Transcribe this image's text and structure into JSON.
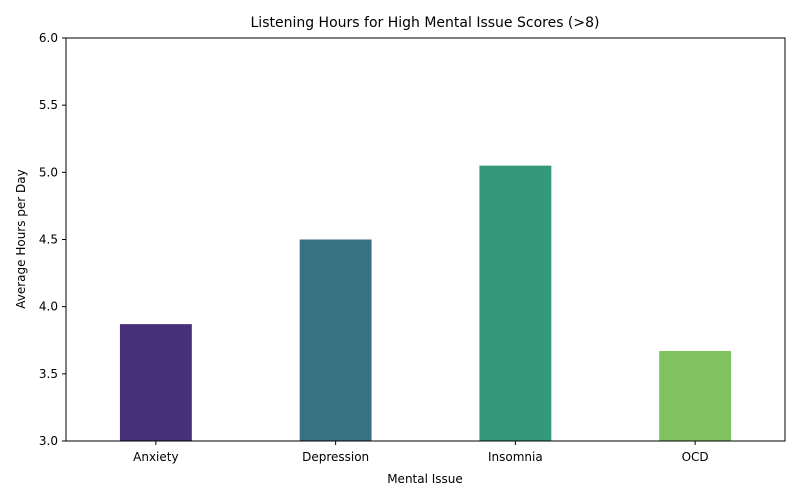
{
  "chart_data": {
    "type": "bar",
    "title": "Listening Hours for High Mental Issue Scores (>8)",
    "xlabel": "Mental Issue",
    "ylabel": "Average Hours per Day",
    "categories": [
      "Anxiety",
      "Depression",
      "Insomnia",
      "OCD"
    ],
    "values": [
      3.87,
      4.5,
      5.05,
      3.67
    ],
    "colors": [
      "#482f79",
      "#367282",
      "#33997a",
      "#80c260"
    ],
    "ylim": [
      3.0,
      6.0
    ],
    "yticks": [
      "3.0",
      "3.5",
      "4.0",
      "4.5",
      "5.0",
      "5.5",
      "6.0"
    ],
    "grid": false,
    "legend": "none"
  }
}
